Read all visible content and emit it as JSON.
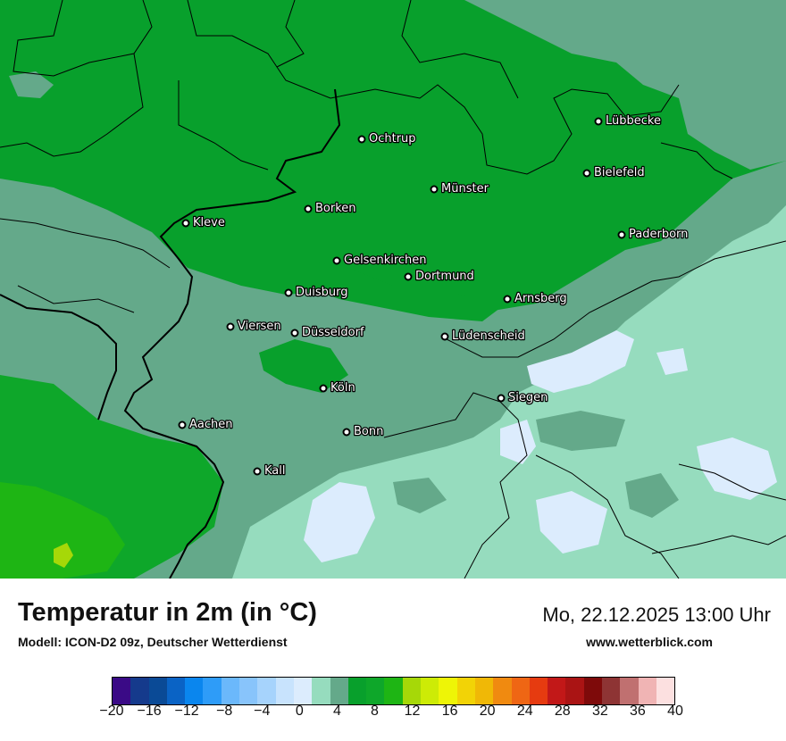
{
  "title": "Temperatur in 2m (in °C)",
  "subtitle": "Modell: ICON-D2 09z, Deutscher Wetterdienst",
  "datetime": "Mo, 22.12.2025 13:00 Uhr",
  "website": "www.wetterblick.com",
  "cities": [
    {
      "name": "Lübbecke"
    },
    {
      "name": "Ochtrup"
    },
    {
      "name": "Bielefeld"
    },
    {
      "name": "Münster"
    },
    {
      "name": "Borken"
    },
    {
      "name": "Kleve"
    },
    {
      "name": "Paderborn"
    },
    {
      "name": "Gelsenkirchen"
    },
    {
      "name": "Dortmund"
    },
    {
      "name": "Duisburg"
    },
    {
      "name": "Arnsberg"
    },
    {
      "name": "Viersen"
    },
    {
      "name": "Düsseldorf"
    },
    {
      "name": "Lüdenscheid"
    },
    {
      "name": "Köln"
    },
    {
      "name": "Siegen"
    },
    {
      "name": "Aachen"
    },
    {
      "name": "Bonn"
    },
    {
      "name": "Kall"
    }
  ],
  "legend": {
    "ticks": [
      "−20",
      "−16",
      "−12",
      "−8",
      "−4",
      "0",
      "4",
      "8",
      "12",
      "16",
      "20",
      "24",
      "28",
      "32",
      "36",
      "40"
    ],
    "colors": [
      "#3a0a86",
      "#153a8c",
      "#0a4a96",
      "#0a63c5",
      "#0a86ee",
      "#2e9cf8",
      "#6bb8fb",
      "#88c4fb",
      "#a6d3fc",
      "#c8e3fd",
      "#dcecfd",
      "#96dcbe",
      "#64a98a",
      "#08a02c",
      "#0ea72a",
      "#1eb514",
      "#a6d808",
      "#cdeb06",
      "#eef506",
      "#f2d306",
      "#f0b806",
      "#f08a10",
      "#ef6614",
      "#e63b10",
      "#c21818",
      "#aa1414",
      "#7e0a0a",
      "#8e3434",
      "#c07070",
      "#f0b4b4",
      "#fce0e0"
    ]
  },
  "palette": {
    "dark_green": "#08a02c",
    "mid_green": "#64a98a",
    "light_mint": "#96dcbe",
    "pale_blue": "#dcecfd",
    "yellow_green": "#a6d808"
  }
}
